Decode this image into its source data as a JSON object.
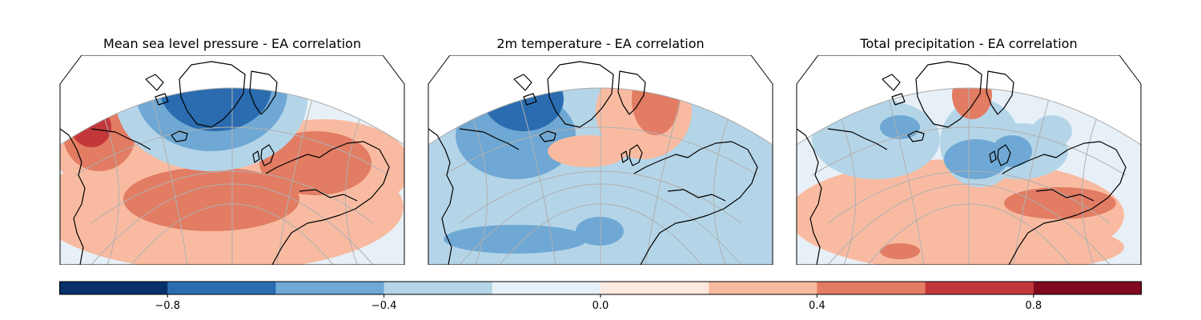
{
  "figure": {
    "panels": [
      {
        "title": "Mean sea level pressure - EA correlation"
      },
      {
        "title": "2m temperature - EA correlation"
      },
      {
        "title": "Total precipitation - EA correlation"
      }
    ]
  },
  "colorbar": {
    "ticks": [
      {
        "value": -0.8,
        "label": "−0.8"
      },
      {
        "value": -0.4,
        "label": "−0.4"
      },
      {
        "value": 0.0,
        "label": "0.0"
      },
      {
        "value": 0.4,
        "label": "0.4"
      },
      {
        "value": 0.8,
        "label": "0.8"
      }
    ]
  },
  "chart_data": {
    "type": "heatmap",
    "colormap": "RdBu_r",
    "levels": [
      -1.0,
      -0.8,
      -0.6,
      -0.4,
      -0.2,
      0.0,
      0.2,
      0.4,
      0.6,
      0.8,
      1.0
    ],
    "level_colors": [
      "#08306b",
      "#2b6cb0",
      "#6fa8d4",
      "#b4d5e8",
      "#e8f0f7",
      "#fde9df",
      "#f8bba1",
      "#e27c63",
      "#c2383a",
      "#7f0a1f"
    ],
    "vmin": -1.0,
    "vmax": 1.0,
    "maps": [
      {
        "title": "Mean sea level pressure - EA correlation",
        "dominant_negative": -0.8,
        "dominant_positive": 0.6
      },
      {
        "title": "2m temperature - EA correlation",
        "dominant_negative": -0.6,
        "dominant_positive": 0.4
      },
      {
        "title": "Total precipitation - EA correlation",
        "dominant_negative": -0.6,
        "dominant_positive": 0.4
      }
    ]
  }
}
